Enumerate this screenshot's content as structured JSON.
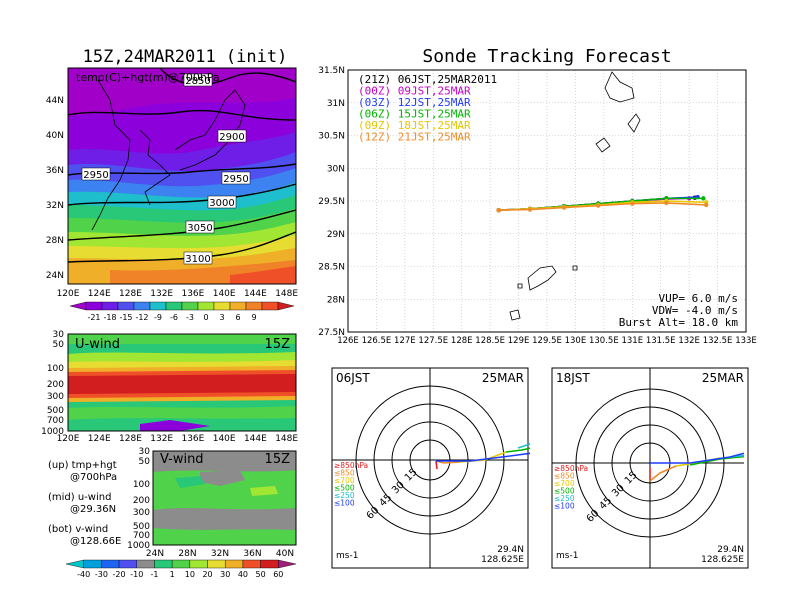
{
  "left_panel": {
    "title": "15Z,24MAR2011 (init)",
    "map_label": "temp(C)+hgt(m)@700hPa",
    "lat_labels": [
      "44N",
      "40N",
      "36N",
      "32N",
      "28N",
      "24N"
    ],
    "lon_labels": [
      "120E",
      "124E",
      "128E",
      "132E",
      "136E",
      "140E",
      "144E",
      "148E"
    ],
    "contour_labels": [
      "2850",
      "2900",
      "2950",
      "2950",
      "3000",
      "3050",
      "3100"
    ],
    "temp_colorbar": [
      "-21",
      "-18",
      "-15",
      "-12",
      "-9",
      "-6",
      "-3",
      "0",
      "3",
      "6",
      "9"
    ],
    "temp_colors": [
      "#a000c8",
      "#8c00dc",
      "#6e1ee6",
      "#5050f0",
      "#3c82f0",
      "#1ebecc",
      "#28c878",
      "#50d24b",
      "#a0e632",
      "#e6dc32",
      "#f0af28",
      "#f08228",
      "#f05028",
      "#d21e1e"
    ]
  },
  "u_panel": {
    "title": "U-wind",
    "time": "15Z",
    "y_labels": [
      "30",
      "50",
      "100",
      "200",
      "300",
      "500",
      "700",
      "1000"
    ],
    "x_labels": [
      "120E",
      "124E",
      "128E",
      "132E",
      "136E",
      "140E",
      "144E",
      "148E"
    ]
  },
  "v_panel": {
    "title": "V-wind",
    "time": "15Z",
    "y_labels": [
      "30",
      "50",
      "100",
      "200",
      "300",
      "500",
      "700",
      "1000"
    ],
    "x_labels": [
      "24N",
      "28N",
      "32N",
      "36N",
      "40N"
    ]
  },
  "legend_text": {
    "up": [
      "(up) tmp+hgt",
      "@700hPa"
    ],
    "mid": [
      "(mid) u-wind",
      "@29.36N"
    ],
    "bot": [
      "(bot) v-wind",
      "@128.66E"
    ]
  },
  "wind_colorbar": {
    "labels": [
      "-40",
      "-30",
      "-20",
      "-10",
      "-1",
      "1",
      "10",
      "20",
      "30",
      "40",
      "50",
      "60"
    ],
    "colors": [
      "#00c8c8",
      "#00a0dc",
      "#1e64f0",
      "#5050f0",
      "#8c8c8c",
      "#28c878",
      "#50d24b",
      "#a0e632",
      "#e6dc32",
      "#f0af28",
      "#f05028",
      "#d21e1e",
      "#a01e78"
    ]
  },
  "tracking": {
    "title": "Sonde Tracking Forecast",
    "lat_labels": [
      "31.5N",
      "31N",
      "30.5N",
      "30N",
      "29.5N",
      "29N",
      "28.5N",
      "28N",
      "27.5N"
    ],
    "lon_labels": [
      "126E",
      "126.5E",
      "127E",
      "127.5E",
      "128E",
      "128.5E",
      "129E",
      "129.5E",
      "130E",
      "130.5E",
      "131E",
      "131.5E",
      "132E",
      "132.5E",
      "133E"
    ],
    "legend": [
      {
        "text": "(21Z) 06JST,25MAR2011",
        "color": "#000000"
      },
      {
        "text": "(00Z) 09JST,25MAR",
        "color": "#c800c8"
      },
      {
        "text": "(03Z) 12JST,25MAR",
        "color": "#1e3cff"
      },
      {
        "text": "(06Z) 15JST,25MAR",
        "color": "#00b400"
      },
      {
        "text": "(09Z) 18JST,25MAR",
        "color": "#e6c800"
      },
      {
        "text": "(12Z) 21JST,25MAR",
        "color": "#f08c28"
      }
    ],
    "vup": "VUP= 6.0 m/s",
    "vdw": "VDW= -4.0 m/s",
    "burst": "Burst Alt= 18.0 km"
  },
  "hodo_left": {
    "left": "06JST",
    "right": "25MAR",
    "lat": "29.4N",
    "lon": "128.625E",
    "unit": "ms-1"
  },
  "hodo_right": {
    "left": "18JST",
    "right": "25MAR",
    "lat": "29.4N",
    "lon": "128.625E",
    "unit": "ms-1"
  },
  "hodo_levels": [
    {
      "text": "≥850hPa",
      "color": "#e61e1e"
    },
    {
      "text": "≤850",
      "color": "#f08c28"
    },
    {
      "text": "≤700",
      "color": "#e6c800"
    },
    {
      "text": "≤500",
      "color": "#00b400"
    },
    {
      "text": "≤250",
      "color": "#1ebecc"
    },
    {
      "text": "≤100",
      "color": "#1e3cff"
    }
  ],
  "hodo_ring_labels": [
    "15",
    "30",
    "45",
    "60"
  ],
  "chart_data": {
    "type": "line",
    "title": "Sonde Tracking Forecast",
    "xlabel": "",
    "ylabel": "",
    "xlim": [
      126,
      133
    ],
    "ylim": [
      27.5,
      31.5
    ],
    "grid": true,
    "legend_position": "top-left",
    "series": [
      {
        "name": "(21Z) 06JST,25MAR2011",
        "x": [
          128.65,
          129.2,
          129.8,
          130.4,
          131.0,
          131.6,
          132.1
        ],
        "y": [
          29.36,
          29.38,
          29.42,
          29.46,
          29.5,
          29.54,
          29.55
        ]
      },
      {
        "name": "(00Z) 09JST,25MAR",
        "x": [
          128.65,
          129.2,
          129.8,
          130.4,
          131.0,
          131.6,
          132.0
        ],
        "y": [
          29.36,
          29.38,
          29.42,
          29.46,
          29.5,
          29.53,
          29.54
        ]
      },
      {
        "name": "(03Z) 12JST,25MAR",
        "x": [
          128.65,
          129.2,
          129.8,
          130.4,
          131.0,
          131.6,
          132.15
        ],
        "y": [
          29.36,
          29.38,
          29.42,
          29.46,
          29.5,
          29.54,
          29.56
        ]
      },
      {
        "name": "(06Z) 15JST,25MAR",
        "x": [
          128.65,
          129.2,
          129.8,
          130.4,
          131.0,
          131.6,
          132.25
        ],
        "y": [
          29.36,
          29.38,
          29.42,
          29.46,
          29.5,
          29.54,
          29.54
        ]
      },
      {
        "name": "(09Z) 18JST,25MAR",
        "x": [
          128.65,
          129.2,
          129.8,
          130.4,
          131.0,
          131.6,
          132.3
        ],
        "y": [
          29.36,
          29.38,
          29.41,
          29.44,
          29.48,
          29.5,
          29.48
        ]
      },
      {
        "name": "(12Z) 21JST,25MAR",
        "x": [
          128.65,
          129.2,
          129.8,
          130.4,
          131.0,
          131.6,
          132.3
        ],
        "y": [
          29.36,
          29.37,
          29.4,
          29.43,
          29.46,
          29.47,
          29.44
        ]
      }
    ]
  }
}
